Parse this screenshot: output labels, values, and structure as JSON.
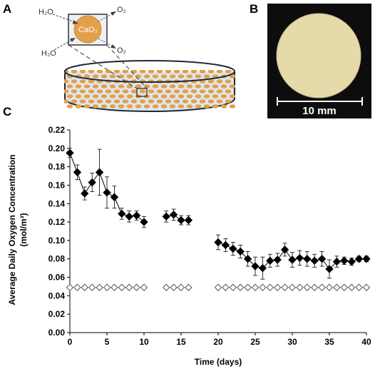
{
  "panels": {
    "a": "A",
    "b": "B",
    "c": "C"
  },
  "schematic": {
    "h2o_top": "H₂O",
    "o2_top": "O₂",
    "h2o_bottom": "H₂O",
    "o2_bottom": "O₂",
    "particle_label": "CaO₂",
    "particle_color": "#e3a04a",
    "dish_color": "#dfe6ee"
  },
  "photo": {
    "scale_label": "10 mm",
    "disc_color": "#e6d9aa"
  },
  "chart_data": {
    "type": "scatter",
    "xlabel": "Time (days)",
    "ylabel": "Average Daily Oxygen Concentration",
    "ylabel_units": "(mol/m³)",
    "xlim": [
      0,
      40
    ],
    "ylim": [
      0,
      0.22
    ],
    "xticks": [
      "0",
      "5",
      "10",
      "15",
      "20",
      "25",
      "30",
      "35",
      "40"
    ],
    "yticks": [
      "0.00",
      "0.02",
      "0.04",
      "0.06",
      "0.08",
      "0.10",
      "0.12",
      "0.14",
      "0.16",
      "0.18",
      "0.20",
      "0.22"
    ],
    "series": [
      {
        "marker": "filled-diamond",
        "segments": [
          [
            {
              "x": 0,
              "y": 0.195,
              "err": 0.005
            },
            {
              "x": 1,
              "y": 0.174,
              "err": 0.008
            },
            {
              "x": 2,
              "y": 0.151,
              "err": 0.007
            },
            {
              "x": 3,
              "y": 0.163,
              "err": 0.01
            },
            {
              "x": 4,
              "y": 0.174,
              "err": 0.025
            },
            {
              "x": 5,
              "y": 0.152,
              "err": 0.017
            },
            {
              "x": 6,
              "y": 0.147,
              "err": 0.012
            },
            {
              "x": 7,
              "y": 0.129,
              "err": 0.006
            },
            {
              "x": 8,
              "y": 0.126,
              "err": 0.006
            },
            {
              "x": 9,
              "y": 0.127,
              "err": 0.005
            },
            {
              "x": 10,
              "y": 0.12,
              "err": 0.006
            }
          ],
          [
            {
              "x": 13,
              "y": 0.126,
              "err": 0.006
            },
            {
              "x": 14,
              "y": 0.128,
              "err": 0.006
            },
            {
              "x": 15,
              "y": 0.122,
              "err": 0.005
            },
            {
              "x": 16,
              "y": 0.122,
              "err": 0.005
            }
          ],
          [
            {
              "x": 20,
              "y": 0.098,
              "err": 0.008
            },
            {
              "x": 21,
              "y": 0.095,
              "err": 0.007
            },
            {
              "x": 22,
              "y": 0.091,
              "err": 0.007
            },
            {
              "x": 23,
              "y": 0.088,
              "err": 0.007
            },
            {
              "x": 24,
              "y": 0.08,
              "err": 0.008
            },
            {
              "x": 25,
              "y": 0.072,
              "err": 0.01
            },
            {
              "x": 26,
              "y": 0.07,
              "err": 0.012
            },
            {
              "x": 27,
              "y": 0.078,
              "err": 0.007
            },
            {
              "x": 28,
              "y": 0.079,
              "err": 0.007
            },
            {
              "x": 29,
              "y": 0.09,
              "err": 0.007
            },
            {
              "x": 30,
              "y": 0.079,
              "err": 0.008
            },
            {
              "x": 31,
              "y": 0.081,
              "err": 0.008
            },
            {
              "x": 32,
              "y": 0.08,
              "err": 0.008
            },
            {
              "x": 33,
              "y": 0.078,
              "err": 0.007
            },
            {
              "x": 34,
              "y": 0.08,
              "err": 0.008
            },
            {
              "x": 35,
              "y": 0.069,
              "err": 0.01
            },
            {
              "x": 36,
              "y": 0.077,
              "err": 0.006
            },
            {
              "x": 37,
              "y": 0.078,
              "err": 0.004
            },
            {
              "x": 38,
              "y": 0.077,
              "err": 0.004
            },
            {
              "x": 39,
              "y": 0.08,
              "err": 0.003
            },
            {
              "x": 40,
              "y": 0.08,
              "err": 0.003
            }
          ]
        ]
      },
      {
        "marker": "open-diamond",
        "segments": [
          [
            {
              "x": 0,
              "y": 0.049
            },
            {
              "x": 1,
              "y": 0.049
            },
            {
              "x": 2,
              "y": 0.049
            },
            {
              "x": 3,
              "y": 0.049
            },
            {
              "x": 4,
              "y": 0.049
            },
            {
              "x": 5,
              "y": 0.049
            },
            {
              "x": 6,
              "y": 0.049
            },
            {
              "x": 7,
              "y": 0.049
            },
            {
              "x": 8,
              "y": 0.049
            },
            {
              "x": 9,
              "y": 0.049
            },
            {
              "x": 10,
              "y": 0.049
            }
          ],
          [
            {
              "x": 13,
              "y": 0.049
            },
            {
              "x": 14,
              "y": 0.049
            },
            {
              "x": 15,
              "y": 0.049
            },
            {
              "x": 16,
              "y": 0.049
            }
          ],
          [
            {
              "x": 20,
              "y": 0.049
            },
            {
              "x": 21,
              "y": 0.049
            },
            {
              "x": 22,
              "y": 0.049
            },
            {
              "x": 23,
              "y": 0.049
            },
            {
              "x": 24,
              "y": 0.049
            },
            {
              "x": 25,
              "y": 0.049
            },
            {
              "x": 26,
              "y": 0.049
            },
            {
              "x": 27,
              "y": 0.049
            },
            {
              "x": 28,
              "y": 0.049
            },
            {
              "x": 29,
              "y": 0.049
            },
            {
              "x": 30,
              "y": 0.049
            },
            {
              "x": 31,
              "y": 0.049
            },
            {
              "x": 32,
              "y": 0.049
            },
            {
              "x": 33,
              "y": 0.049
            },
            {
              "x": 34,
              "y": 0.049
            },
            {
              "x": 35,
              "y": 0.049
            },
            {
              "x": 36,
              "y": 0.049
            },
            {
              "x": 37,
              "y": 0.049
            },
            {
              "x": 38,
              "y": 0.049
            },
            {
              "x": 39,
              "y": 0.049
            },
            {
              "x": 40,
              "y": 0.049
            }
          ]
        ]
      }
    ]
  }
}
